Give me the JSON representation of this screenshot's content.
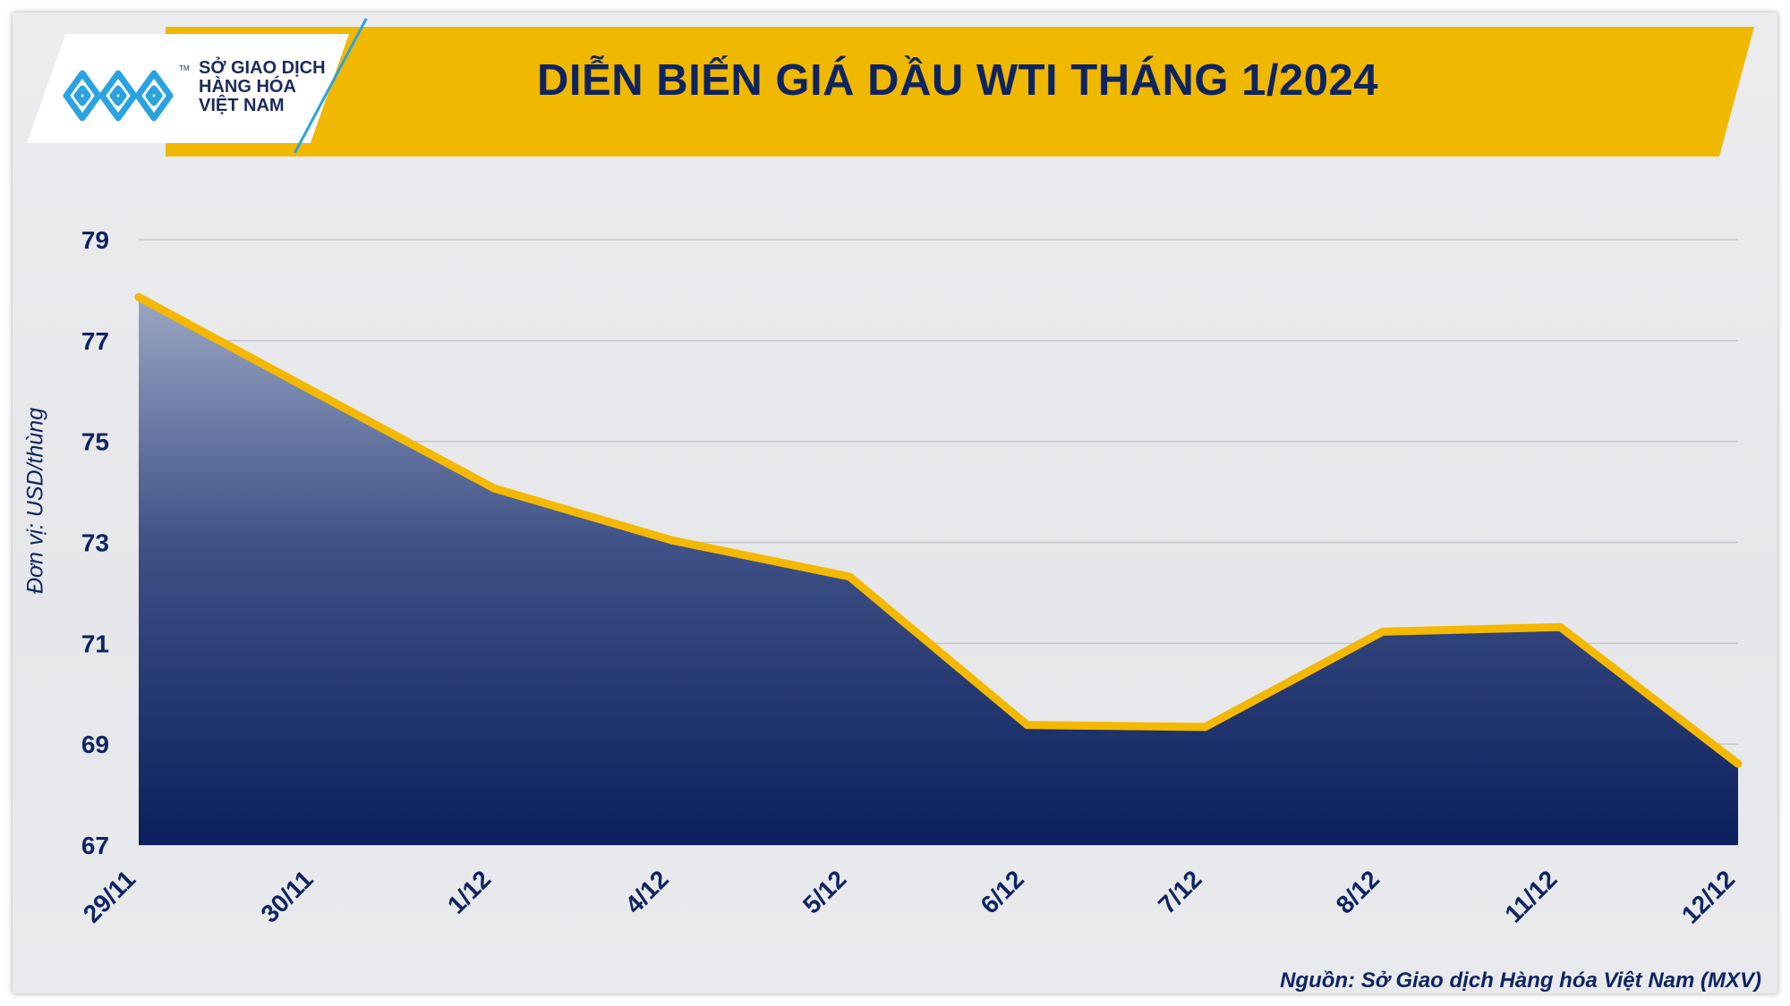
{
  "header": {
    "title": "DIỄN BIẾN GIÁ DẦU WTI THÁNG 1/2024"
  },
  "logo": {
    "icon": "mxv-logo-icon",
    "lines": [
      "SỞ GIAO DỊCH",
      "HÀNG HÓA",
      "VIỆT NAM"
    ],
    "tm": "TM"
  },
  "footer": {
    "source": "Nguồn: Sở Giao dịch Hàng hóa Việt Nam (MXV)"
  },
  "colors": {
    "accent": "#f1b800",
    "navy": "#0e2460",
    "area_top": "#9aa6c3",
    "area_bottom": "#0b1f5c",
    "line": "#f5b800"
  },
  "chart_data": {
    "type": "area",
    "title": "DIỄN BIẾN GIÁ DẦU WTI THÁNG 1/2024",
    "xlabel": "",
    "ylabel": "Đơn vị: USD/thùng",
    "categories": [
      "29/11",
      "30/11",
      "1/12",
      "4/12",
      "5/12",
      "6/12",
      "7/12",
      "8/12",
      "11/12",
      "12/12"
    ],
    "series": [
      {
        "values": [
          77.86,
          75.96,
          74.07,
          73.04,
          72.32,
          69.38,
          69.34,
          71.23,
          71.32,
          68.61
        ]
      }
    ],
    "ylim": [
      67,
      79
    ],
    "yticks": [
      67,
      69,
      71,
      73,
      75,
      77,
      79
    ],
    "grid": true,
    "legend": "none"
  }
}
